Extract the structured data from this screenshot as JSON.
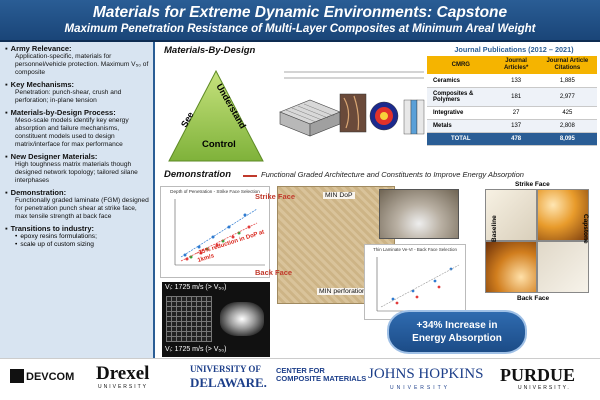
{
  "header": {
    "title": "Materials for Extreme Dynamic Environments: Capstone",
    "subtitle": "Maximum Penetration Resistance of Multi-Layer Composites at Minimum Areal Weight"
  },
  "left": {
    "sections": [
      {
        "heading": "Army Relevance:",
        "body": "Application-specific, materials for personnel/vehicle protection. Maximum V₅₀ of composite"
      },
      {
        "heading": "Key Mechanisms:",
        "body": "Penetration: punch-shear, crush and perforation; in-plane tension"
      },
      {
        "heading": "Materials-by-Design Process:",
        "body": "Meso-scale models identify key energy absorption and failure mechanisms, constituent models used to design matrix/interface for max performance"
      },
      {
        "heading": "New Designer Materials:",
        "body": "High toughness matrix materials though designed network topology; tailored silane interphases"
      },
      {
        "heading": "Demonstration:",
        "body": "Functionally graded laminate (FGM) designed for penetration punch shear at strike face, max tensile strength at back face"
      },
      {
        "heading": "Transitions to industry:",
        "items": [
          "epoxy resins formulations;",
          "scale up of custom sizing"
        ]
      }
    ]
  },
  "mbd": {
    "title": "Materials-By-Design",
    "tri_see": "See",
    "tri_understand": "Understand",
    "tri_control": "Control"
  },
  "journal": {
    "title": "Journal Publications (2012 – 2021)",
    "headers": [
      "CMRG",
      "Journal Articles*",
      "Journal Article Citations"
    ],
    "rows": [
      [
        "Ceramics",
        "133",
        "1,885"
      ],
      [
        "Composites & Polymers",
        "181",
        "2,977"
      ],
      [
        "Integrative",
        "27",
        "425"
      ],
      [
        "Metals",
        "137",
        "2,808"
      ]
    ],
    "total": [
      "TOTAL",
      "478",
      "8,095"
    ]
  },
  "demo": {
    "title": "Demonstration",
    "subtitle": "Functional Graded Architecture and Constituents to Improve Energy Absorption",
    "dop_chart_title": "Depth of Penetration - Strike Face Selection",
    "dop_note": "~25% reduction in DoP at 1km/s",
    "strike_face": "Strike Face",
    "back_face": "Back Face",
    "min_dop": "MIN DoP",
    "min_perf": "MIN perforation",
    "chart2_title": "Thin Laminate Ve-Vr - Back Face Selection",
    "sample_strike": "Strike Face",
    "sample_baseline": "Baseline",
    "sample_capstone": "Capstone",
    "sample_back": "Back Face",
    "v1": "Vᵢ: 1725 m/s (> V₅₀)",
    "v2": "Vᵢ: 1725 m/s (> V₅₀)",
    "badge_line1": "+34% Increase in",
    "badge_line2": "Energy Absorption"
  },
  "footer": {
    "devcom": "DEVCOM",
    "drexel": "Drexel",
    "drexel_u": "UNIVERSITY",
    "ud1": "UNIVERSITY OF",
    "ud2": "DELAWARE.",
    "ccm1": "CENTER FOR",
    "ccm2": "COMPOSITE MATERIALS",
    "jhu": "JOHNS HOPKINS",
    "jhu_u": "UNIVERSITY",
    "purdue": "PURDUE",
    "purdue_u": "UNIVERSITY."
  }
}
